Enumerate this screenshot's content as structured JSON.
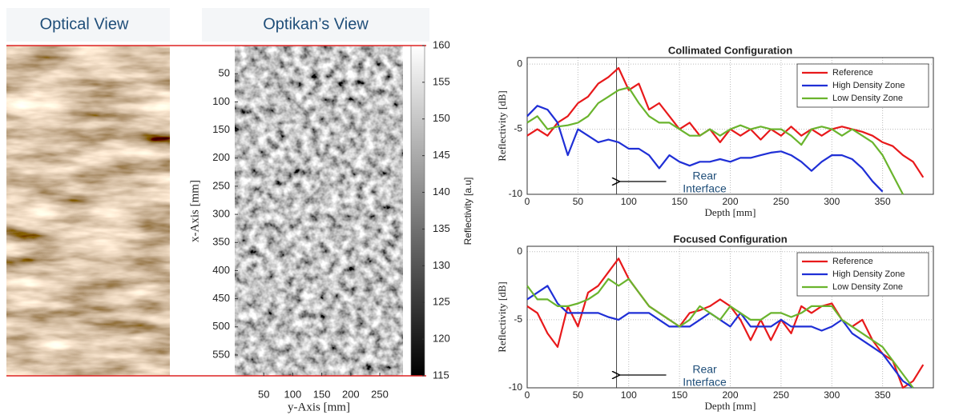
{
  "chart_data": [
    {
      "type": "image",
      "title": "Optical View"
    },
    {
      "type": "heatmap",
      "title": "Optikan’s View",
      "xlabel": "y-Axis [mm]",
      "ylabel": "x-Axis [mm]",
      "xlim": [
        0,
        290
      ],
      "ylim": [
        0,
        587
      ],
      "y_inverted": true,
      "xticks": [
        50,
        100,
        150,
        200,
        250
      ],
      "yticks": [
        50,
        100,
        150,
        200,
        250,
        300,
        350,
        400,
        450,
        500,
        550
      ],
      "colorbar": {
        "label": "Reflectivity [a.u]",
        "lim": [
          115,
          160
        ],
        "ticks": [
          115,
          120,
          125,
          130,
          135,
          140,
          145,
          150,
          155,
          160
        ]
      }
    },
    {
      "type": "line",
      "title": "Collimated Configuration",
      "xlabel": "Depth [mm]",
      "ylabel": "Reflectivity [dB]",
      "xlim": [
        0,
        400
      ],
      "ylim": [
        -10,
        0.5
      ],
      "xticks": [
        0,
        50,
        100,
        150,
        200,
        250,
        300,
        350
      ],
      "yticks": [
        -10,
        -5,
        0
      ],
      "grid": true,
      "legend": "top-right",
      "vline": 88,
      "annotation": [
        "Rear",
        "Interface"
      ],
      "x": [
        0,
        10,
        20,
        30,
        40,
        50,
        60,
        70,
        80,
        90,
        100,
        110,
        120,
        130,
        140,
        150,
        160,
        170,
        180,
        190,
        200,
        210,
        220,
        230,
        240,
        250,
        260,
        270,
        280,
        290,
        300,
        310,
        320,
        330,
        340,
        350,
        360,
        370,
        380,
        390
      ],
      "series": [
        {
          "name": "Reference",
          "color": "#e8191b",
          "values": [
            -5.5,
            -5,
            -5.5,
            -4.5,
            -4,
            -3,
            -2.5,
            -1.5,
            -1,
            -0.3,
            -2,
            -1.5,
            -3.5,
            -3,
            -4,
            -5,
            -4.5,
            -5.5,
            -5,
            -6,
            -5,
            -5.5,
            -5,
            -5.8,
            -5,
            -5.5,
            -4.8,
            -5.5,
            -5,
            -5.5,
            -5,
            -4.8,
            -5,
            -5.2,
            -5.5,
            -6,
            -6.3,
            -7,
            -7.5,
            -8.7
          ]
        },
        {
          "name": "High Density Zone",
          "color": "#1f2fd6",
          "values": [
            -4,
            -3.2,
            -3.5,
            -4.5,
            -7,
            -5,
            -5.5,
            -6,
            -5.8,
            -6,
            -6.5,
            -6.5,
            -7,
            -8,
            -7,
            -7.5,
            -7.8,
            -7.5,
            -7.5,
            -7.3,
            -7.5,
            -7.2,
            -7.2,
            -7,
            -6.8,
            -6.7,
            -7,
            -7.5,
            -8.2,
            -7.5,
            -7,
            -7,
            -7.3,
            -8,
            -9,
            -9.8,
            null,
            null,
            null,
            null
          ]
        },
        {
          "name": "Low Density Zone",
          "color": "#6ab42d",
          "values": [
            -4.5,
            -4,
            -5,
            -4.8,
            -4.7,
            -4.5,
            -4,
            -3,
            -2.5,
            -2,
            -1.8,
            -3,
            -4,
            -4.5,
            -4.5,
            -5,
            -5.5,
            -5.5,
            -5,
            -5.5,
            -5,
            -4.7,
            -5,
            -4.8,
            -5,
            -5,
            -5.5,
            -6.2,
            -5,
            -4.8,
            -5,
            -5.5,
            -5,
            -5.5,
            -6,
            -7,
            -8.5,
            -10,
            null,
            null
          ]
        }
      ]
    },
    {
      "type": "line",
      "title": "Focused Configuration",
      "xlabel": "Depth [mm]",
      "ylabel": "Reflectivity [dB]",
      "xlim": [
        0,
        400
      ],
      "ylim": [
        -10,
        0.4
      ],
      "xticks": [
        0,
        50,
        100,
        150,
        200,
        250,
        300,
        350
      ],
      "yticks": [
        -10,
        -5,
        0
      ],
      "grid": true,
      "legend": "top-right",
      "vline": 88,
      "annotation": [
        "Rear",
        "Interface"
      ],
      "x": [
        0,
        10,
        20,
        30,
        40,
        50,
        60,
        70,
        80,
        90,
        100,
        110,
        120,
        130,
        140,
        150,
        160,
        170,
        180,
        190,
        200,
        210,
        220,
        230,
        240,
        250,
        260,
        270,
        280,
        290,
        300,
        310,
        320,
        330,
        340,
        350,
        360,
        370,
        380,
        390
      ],
      "series": [
        {
          "name": "Reference",
          "color": "#e8191b",
          "values": [
            -4,
            -4.5,
            -6,
            -7,
            -4,
            -5.5,
            -3,
            -2.5,
            -1.5,
            -0.5,
            -2,
            -3,
            -4,
            -4.5,
            -5,
            -5.5,
            -4.5,
            -4.3,
            -4,
            -3.5,
            -4,
            -5,
            -6.5,
            -5,
            -6.5,
            -5,
            -6,
            -4,
            -4.5,
            -4,
            -3.8,
            -5,
            -5.5,
            -5,
            -6.5,
            -7.5,
            -8,
            -10,
            -9.5,
            -8.3
          ]
        },
        {
          "name": "High Density Zone",
          "color": "#1f2fd6",
          "values": [
            -3.5,
            -3,
            -2.5,
            -3.8,
            -4.5,
            -4.5,
            -4.5,
            -4.5,
            -4.8,
            -5,
            -4.5,
            -4.5,
            -4.5,
            -5,
            -5.5,
            -5.5,
            -5.5,
            -5,
            -4.5,
            -5,
            -5.5,
            -4.5,
            -5.5,
            -5.5,
            -5.5,
            -5,
            -5.5,
            -5.5,
            -5.5,
            -5.8,
            -5.5,
            -5,
            -6,
            -6.5,
            -7,
            -7.5,
            -8.5,
            -9.5,
            -10,
            null
          ]
        },
        {
          "name": "Low Density Zone",
          "color": "#6ab42d",
          "values": [
            -2.5,
            -3.5,
            -3.5,
            -4,
            -4,
            -3.8,
            -3.5,
            -3,
            -2,
            -2.5,
            -2,
            -3,
            -4,
            -4.5,
            -5,
            -5.5,
            -5,
            -4,
            -4.5,
            -5,
            -4,
            -4.5,
            -5,
            -5,
            -4.5,
            -4.5,
            -4.8,
            -4.5,
            -4,
            -4,
            -4,
            -5,
            -5.5,
            -6,
            -6.5,
            -7,
            -8,
            -9,
            -10,
            null
          ]
        }
      ]
    }
  ]
}
